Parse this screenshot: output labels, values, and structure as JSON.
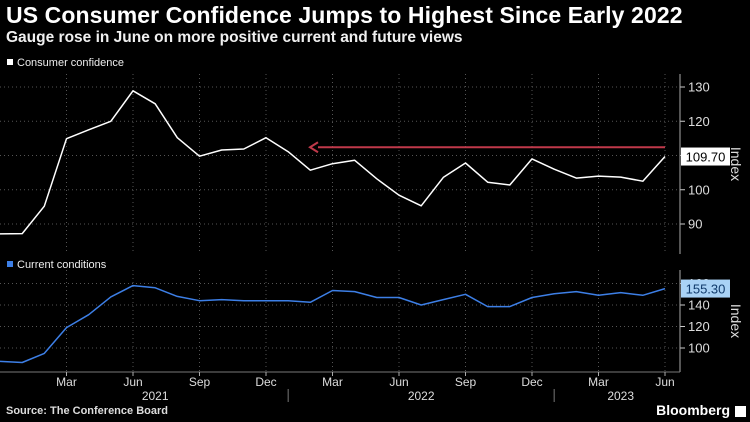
{
  "header": {
    "title": "US Consumer Confidence Jumps to Highest Since Early 2022",
    "subtitle": "Gauge rose in June on more positive current and future views"
  },
  "footer": {
    "source": "Source: The Conference Board",
    "brand": "Bloomberg"
  },
  "colors": {
    "background": "#000000",
    "confidence_line": "#ffffff",
    "current_line": "#3d7fe6",
    "arrow": "#c0394a"
  },
  "x_axis": {
    "ticks": [
      {
        "label": "Mar",
        "date": "2021-03"
      },
      {
        "label": "Jun",
        "date": "2021-06"
      },
      {
        "label": "Sep",
        "date": "2021-09"
      },
      {
        "label": "Dec",
        "date": "2021-12"
      },
      {
        "label": "Mar",
        "date": "2022-03"
      },
      {
        "label": "Jun",
        "date": "2022-06"
      },
      {
        "label": "Sep",
        "date": "2022-09"
      },
      {
        "label": "Dec",
        "date": "2022-12"
      },
      {
        "label": "Mar",
        "date": "2023-03"
      },
      {
        "label": "Jun",
        "date": "2023-06"
      }
    ],
    "years": [
      {
        "label": "2021",
        "date": "2021-07"
      },
      {
        "label": "2022",
        "date": "2022-07"
      },
      {
        "label": "2023",
        "date": "2023-04"
      }
    ],
    "year_separators": [
      "2021-12-31",
      "2022-12-31"
    ]
  },
  "chart_data": [
    {
      "type": "line",
      "legend": "Consumer confidence",
      "legend_position": "top-left",
      "ylabel": "Index",
      "y_ticks": [
        90,
        100,
        110,
        120,
        130
      ],
      "ylim": [
        82,
        133
      ],
      "grid": true,
      "last_value_label": "109.70",
      "annotation": "arrow pointing left at the latest level",
      "annotation_level": 112.4,
      "x": [
        "2020-12",
        "2021-01",
        "2021-02",
        "2021-03",
        "2021-04",
        "2021-05",
        "2021-06",
        "2021-07",
        "2021-08",
        "2021-09",
        "2021-10",
        "2021-11",
        "2021-12",
        "2022-01",
        "2022-02",
        "2022-03",
        "2022-04",
        "2022-05",
        "2022-06",
        "2022-07",
        "2022-08",
        "2022-09",
        "2022-10",
        "2022-11",
        "2022-12",
        "2023-01",
        "2023-02",
        "2023-03",
        "2023-04",
        "2023-05",
        "2023-06"
      ],
      "values": [
        87.1,
        87.2,
        95.2,
        114.9,
        117.5,
        120.0,
        128.9,
        125.1,
        115.2,
        109.8,
        111.6,
        111.9,
        115.2,
        111.1,
        105.7,
        107.6,
        108.6,
        103.2,
        98.4,
        95.3,
        103.6,
        107.8,
        102.2,
        101.4,
        109.0,
        106.0,
        103.4,
        104.0,
        103.7,
        102.5,
        109.7
      ]
    },
    {
      "type": "line",
      "legend": "Current conditions",
      "legend_position": "top-left",
      "ylabel": "Index",
      "y_ticks": [
        100,
        120,
        140,
        160
      ],
      "ylim": [
        80,
        165
      ],
      "grid": true,
      "last_value_label": "155.30",
      "x": [
        "2020-12",
        "2021-01",
        "2021-02",
        "2021-03",
        "2021-04",
        "2021-05",
        "2021-06",
        "2021-07",
        "2021-08",
        "2021-09",
        "2021-10",
        "2021-11",
        "2021-12",
        "2022-01",
        "2022-02",
        "2022-03",
        "2022-04",
        "2022-05",
        "2022-06",
        "2022-07",
        "2022-08",
        "2022-09",
        "2022-10",
        "2022-11",
        "2022-12",
        "2023-01",
        "2023-02",
        "2023-03",
        "2023-04",
        "2023-05",
        "2023-06"
      ],
      "values": [
        87.5,
        86.5,
        95.0,
        119.0,
        131.0,
        147.5,
        158.0,
        156.0,
        148.0,
        144.0,
        145.0,
        144.0,
        144.0,
        144.0,
        142.5,
        153.5,
        152.5,
        147.0,
        147.0,
        140.0,
        145.0,
        150.0,
        138.5,
        138.5,
        147.0,
        150.5,
        152.5,
        149.0,
        151.5,
        149.0,
        155.3
      ]
    }
  ]
}
